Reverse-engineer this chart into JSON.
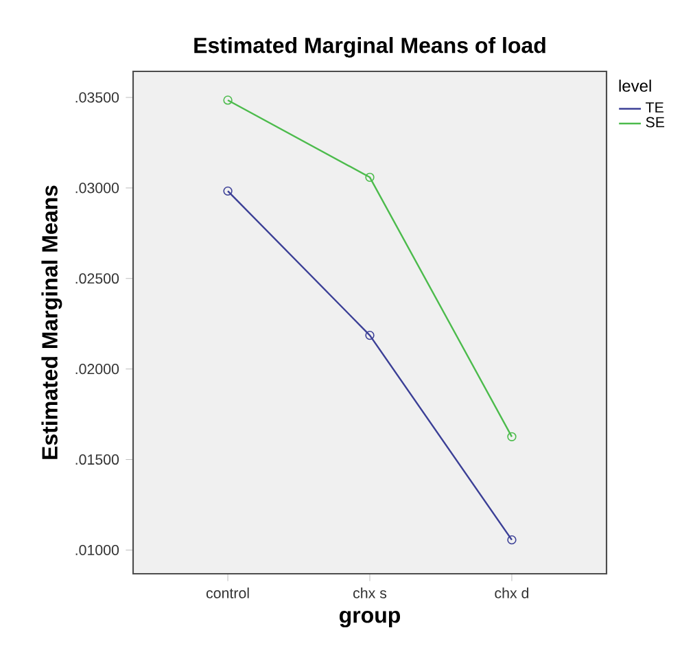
{
  "chart_data": {
    "type": "line",
    "title": "Estimated Marginal Means of load",
    "xlabel": "group",
    "ylabel": "Estimated Marginal Means",
    "legend_title": "level",
    "categories": [
      "control",
      "chx s",
      "chx d"
    ],
    "series": [
      {
        "name": "TE",
        "color": "#3b3f96",
        "values": [
          0.02983,
          0.02186,
          0.01056
        ]
      },
      {
        "name": "SE",
        "color": "#4cbb4c",
        "values": [
          0.03485,
          0.03059,
          0.01626
        ]
      }
    ],
    "ylim": [
      0.00869,
      0.03644
    ],
    "yticks": [
      {
        "value": 0.01,
        "label": ".01000"
      },
      {
        "value": 0.015,
        "label": ".01500"
      },
      {
        "value": 0.02,
        "label": ".02000"
      },
      {
        "value": 0.025,
        "label": ".02500"
      },
      {
        "value": 0.03,
        "label": ".03000"
      },
      {
        "value": 0.035,
        "label": ".03500"
      }
    ],
    "grid": false,
    "legend": "top right",
    "marker": "circle",
    "line_style": "solid"
  }
}
